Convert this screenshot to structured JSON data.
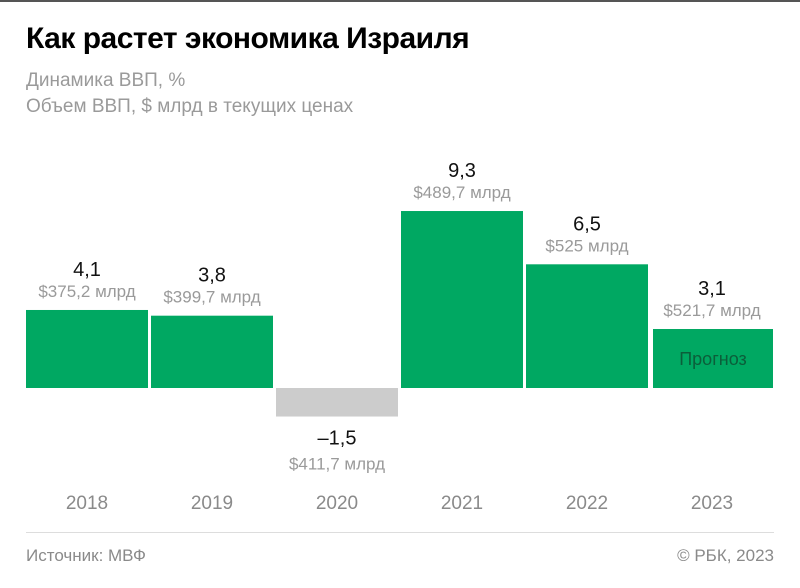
{
  "title": "Как растет экономика Израиля",
  "subtitle_1": "Динамика ВВП, %",
  "subtitle_2": "Объем ВВП, $ млрд в текущих ценах",
  "source": "Источник: МВФ",
  "copyright": "© РБК, 2023",
  "colors": {
    "positive": "#00A862",
    "negative": "#CCCCCC",
    "forecast_label": "#0B5E3A"
  },
  "chart_data": {
    "type": "bar",
    "categories": [
      "2018",
      "2019",
      "2020",
      "2021",
      "2022",
      "2023"
    ],
    "values": [
      4.1,
      3.8,
      -1.5,
      9.3,
      6.5,
      3.1
    ],
    "value_labels": [
      "4,1",
      "3,8",
      "–1,5",
      "9,3",
      "6,5",
      "3,1"
    ],
    "gdp_labels": [
      "$375,2 млрд",
      "$399,7 млрд",
      "$411,7 млрд",
      "$489,7 млрд",
      "$525 млрд",
      "$521,7 млрд"
    ],
    "annotations": [
      {
        "category": "2023",
        "text": "Прогноз"
      }
    ],
    "ylabel": "",
    "xlabel": "",
    "grid": false
  }
}
